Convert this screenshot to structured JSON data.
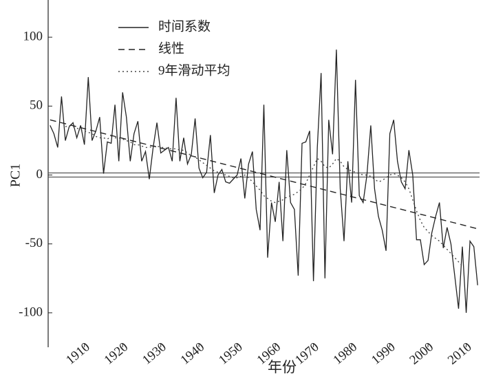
{
  "chart_data": {
    "type": "line",
    "xlabel": "年份",
    "ylabel": "PC1",
    "x": [
      1901,
      1902,
      1903,
      1904,
      1905,
      1906,
      1907,
      1908,
      1909,
      1910,
      1911,
      1912,
      1913,
      1914,
      1915,
      1916,
      1917,
      1918,
      1919,
      1920,
      1921,
      1922,
      1923,
      1924,
      1925,
      1926,
      1927,
      1928,
      1929,
      1930,
      1931,
      1932,
      1933,
      1934,
      1935,
      1936,
      1937,
      1938,
      1939,
      1940,
      1941,
      1942,
      1943,
      1944,
      1945,
      1946,
      1947,
      1948,
      1949,
      1950,
      1951,
      1952,
      1953,
      1954,
      1955,
      1956,
      1957,
      1958,
      1959,
      1960,
      1961,
      1962,
      1963,
      1964,
      1965,
      1966,
      1967,
      1968,
      1969,
      1970,
      1971,
      1972,
      1973,
      1974,
      1975,
      1976,
      1977,
      1978,
      1979,
      1980,
      1981,
      1982,
      1983,
      1984,
      1985,
      1986,
      1987,
      1988,
      1989,
      1990,
      1991,
      1992,
      1993,
      1994,
      1995,
      1996,
      1997,
      1998,
      1999,
      2000,
      2001,
      2002,
      2003,
      2004,
      2005,
      2006,
      2007,
      2008,
      2009,
      2010,
      2011,
      2012,
      2013
    ],
    "series": [
      {
        "name": "时间系数",
        "color": "#222222",
        "dash": "solid",
        "values": [
          36,
          30,
          20,
          57,
          25,
          35,
          38,
          27,
          36,
          22,
          71,
          25,
          32,
          42,
          1,
          24,
          23,
          51,
          10,
          60,
          42,
          10,
          30,
          39,
          10,
          17,
          -3,
          20,
          38,
          16,
          18,
          20,
          10,
          56,
          10,
          27,
          8,
          15,
          41,
          5,
          -2,
          2,
          29,
          -13,
          0,
          4,
          -5,
          -6,
          -3,
          0,
          12,
          -17,
          8,
          17,
          -25,
          -40,
          51,
          -60,
          -20,
          -34,
          -5,
          -48,
          18,
          -20,
          -25,
          -73,
          23,
          24,
          32,
          -77,
          20,
          74,
          -75,
          40,
          15,
          91,
          -10,
          -48,
          10,
          -20,
          69,
          -15,
          -20,
          0,
          36,
          -10,
          -30,
          -40,
          -55,
          30,
          40,
          10,
          -5,
          -10,
          18,
          0,
          -47,
          -47,
          -65,
          -62,
          -42,
          -30,
          -20,
          -53,
          -38,
          -50,
          -73,
          -97,
          -52,
          -100,
          -48,
          -52,
          -80
        ]
      },
      {
        "name": "线性",
        "color": "#222222",
        "dash": "dashed",
        "x": [
          1901,
          2013
        ],
        "values": [
          40,
          -39
        ]
      },
      {
        "name": "9年滑动平均",
        "color": "#444444",
        "dash": "dotted",
        "values": [
          null,
          null,
          null,
          null,
          35,
          36,
          35,
          34,
          33,
          32,
          31,
          30,
          28,
          27,
          27,
          26,
          28,
          27,
          27,
          26,
          25,
          24,
          22,
          22,
          21,
          20,
          20,
          21,
          21,
          20,
          20,
          19,
          19,
          19,
          18,
          18,
          16,
          14,
          13,
          11,
          9,
          7,
          5,
          3,
          2,
          1,
          0,
          -1,
          -2,
          -2,
          -1,
          0,
          -2,
          -5,
          -8,
          -11,
          -15,
          -17,
          -19,
          -20,
          -19,
          -18,
          -16,
          -15,
          -14,
          -12,
          -10,
          -6,
          0,
          6,
          12,
          10,
          6,
          5,
          8,
          12,
          10,
          6,
          4,
          3,
          2,
          1,
          0,
          0,
          -1,
          -3,
          -5,
          -4,
          -2,
          0,
          1,
          0,
          -2,
          -5,
          -10,
          -18,
          -26,
          -33,
          -38,
          -41,
          -44,
          -46,
          -48,
          -51,
          -54,
          -57,
          -60,
          -63,
          -66,
          null,
          null,
          null,
          null
        ]
      }
    ],
    "hlines": [
      1.5,
      -1.5
    ],
    "xlim": [
      1900.5,
      2013.5
    ],
    "xticks": [
      1910,
      1920,
      1930,
      1940,
      1950,
      1960,
      1970,
      1980,
      1990,
      2000,
      2010
    ],
    "ylim": [
      -125,
      127
    ],
    "yticks": [
      -100,
      -50,
      0,
      50,
      100
    ],
    "legend": "upper left"
  }
}
